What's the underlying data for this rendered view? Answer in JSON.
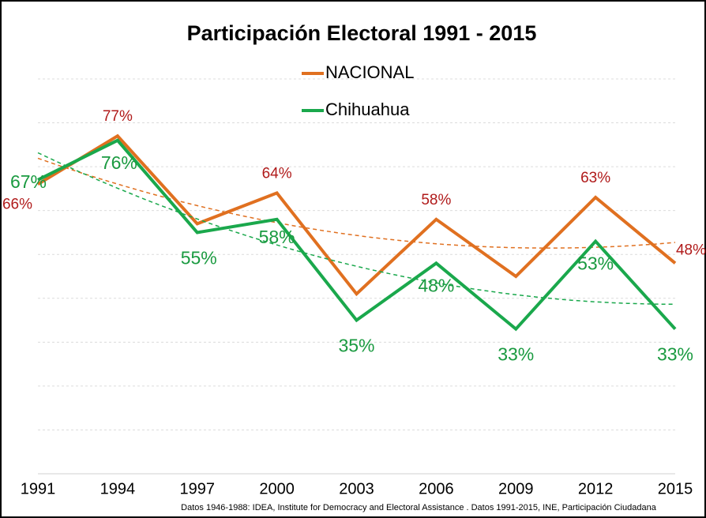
{
  "chart_data": {
    "type": "line",
    "title": "Participación Electoral 1991 - 2015",
    "categories": [
      "1991",
      "1994",
      "1997",
      "2000",
      "2003",
      "2006",
      "2009",
      "2012",
      "2015"
    ],
    "series": [
      {
        "name": "NACIONAL",
        "color": "#e07020",
        "label_color": "#b01a1a",
        "values": [
          66,
          77,
          57,
          64,
          41,
          58,
          45,
          63,
          48
        ],
        "value_labels": [
          "66%",
          "77%",
          null,
          "64%",
          null,
          "58%",
          null,
          "63%",
          "48%"
        ]
      },
      {
        "name": "Chihuahua",
        "color": "#1aa84c",
        "label_color": "#1a9a40",
        "values": [
          67,
          76,
          55,
          58,
          35,
          48,
          33,
          53,
          33
        ],
        "value_labels": [
          "67%",
          "76%",
          "55%",
          "58%",
          "35%",
          "48%",
          "33%",
          "53%",
          "33%"
        ]
      }
    ],
    "trendline": true,
    "ylim": [
      0,
      90
    ],
    "yticks": [
      0,
      10,
      20,
      30,
      40,
      50,
      60,
      70,
      80,
      90
    ],
    "grid": true,
    "source": "Datos 1946-1988: IDEA, Institute for Democracy and Electoral Assistance . Datos 1991-2015, INE, Participación Ciudadana"
  }
}
